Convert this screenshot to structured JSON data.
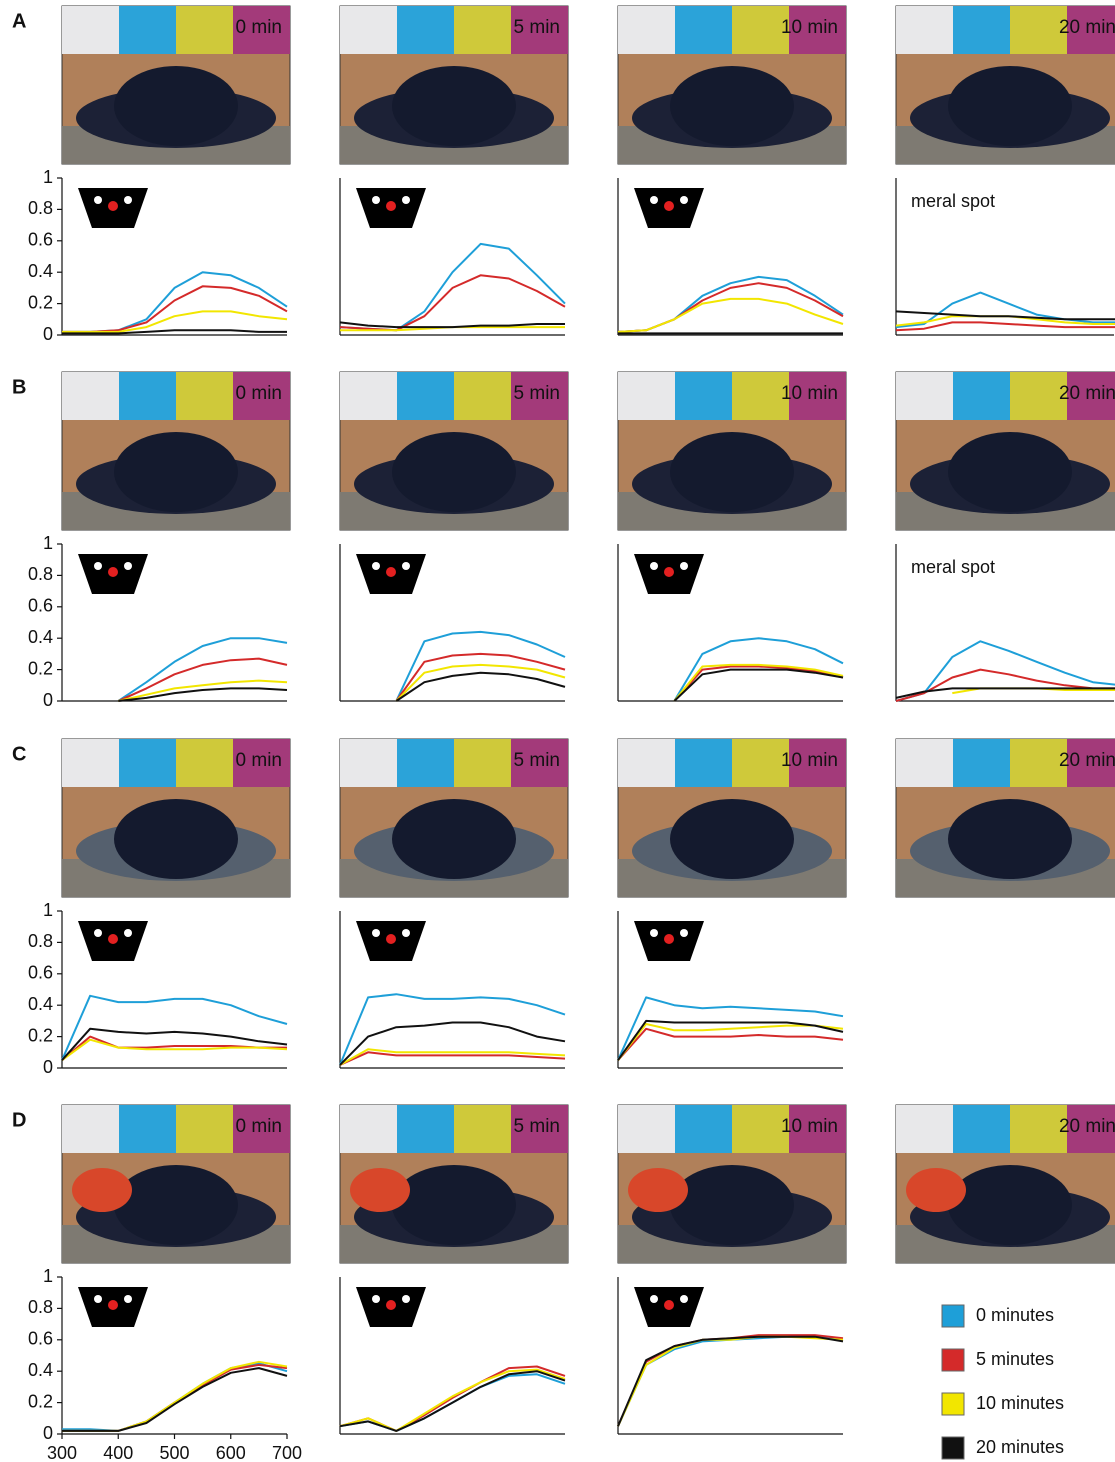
{
  "panel_labels": [
    "A",
    "B",
    "C",
    "D"
  ],
  "photo_labels": [
    "0 min",
    "5 min",
    "10 min",
    "20 min"
  ],
  "legend": [
    {
      "name": "0 minutes",
      "color": "#1e9fd8"
    },
    {
      "name": "5 minutes",
      "color": "#d42a2a"
    },
    {
      "name": "10 minutes",
      "color": "#f2e600"
    },
    {
      "name": "20 minutes",
      "color": "#111111"
    }
  ],
  "chart_data": [
    [
      {
        "type": "line",
        "x": [
          300,
          350,
          400,
          450,
          500,
          550,
          600,
          650,
          700
        ],
        "xlim": [
          300,
          700
        ],
        "ylim": [
          0,
          1
        ],
        "yticks": [
          0,
          0.2,
          0.4,
          0.6,
          0.8,
          1
        ],
        "series": [
          {
            "values": [
              0.02,
              0.02,
              0.03,
              0.1,
              0.3,
              0.4,
              0.38,
              0.3,
              0.18
            ]
          },
          {
            "values": [
              0.02,
              0.02,
              0.03,
              0.08,
              0.22,
              0.31,
              0.3,
              0.25,
              0.15
            ]
          },
          {
            "values": [
              0.02,
              0.02,
              0.02,
              0.05,
              0.12,
              0.15,
              0.15,
              0.12,
              0.1
            ]
          },
          {
            "values": [
              0.01,
              0.01,
              0.01,
              0.02,
              0.03,
              0.03,
              0.03,
              0.02,
              0.02
            ]
          }
        ]
      },
      {
        "type": "line",
        "x": [
          300,
          350,
          400,
          450,
          500,
          550,
          600,
          650,
          700
        ],
        "xlim": [
          300,
          700
        ],
        "ylim": [
          0,
          1
        ],
        "series": [
          {
            "values": [
              0.05,
              0.04,
              0.03,
              0.15,
              0.4,
              0.58,
              0.55,
              0.38,
              0.2
            ]
          },
          {
            "values": [
              0.05,
              0.04,
              0.03,
              0.12,
              0.3,
              0.38,
              0.36,
              0.28,
              0.18
            ]
          },
          {
            "values": [
              0.03,
              0.03,
              0.03,
              0.04,
              0.05,
              0.05,
              0.05,
              0.05,
              0.05
            ]
          },
          {
            "values": [
              0.08,
              0.06,
              0.05,
              0.05,
              0.05,
              0.06,
              0.06,
              0.07,
              0.07
            ]
          }
        ]
      },
      {
        "type": "line",
        "x": [
          300,
          350,
          400,
          450,
          500,
          550,
          600,
          650,
          700
        ],
        "xlim": [
          300,
          700
        ],
        "ylim": [
          0,
          1
        ],
        "series": [
          {
            "values": [
              0.02,
              0.03,
              0.1,
              0.25,
              0.33,
              0.37,
              0.35,
              0.25,
              0.13
            ]
          },
          {
            "values": [
              0.02,
              0.03,
              0.1,
              0.22,
              0.3,
              0.33,
              0.3,
              0.22,
              0.12
            ]
          },
          {
            "values": [
              0.02,
              0.03,
              0.1,
              0.2,
              0.23,
              0.23,
              0.2,
              0.13,
              0.07
            ]
          },
          {
            "values": [
              0.01,
              0.01,
              0.01,
              0.01,
              0.01,
              0.01,
              0.01,
              0.01,
              0.01
            ]
          }
        ]
      },
      {
        "type": "line",
        "annotation": "meral spot",
        "x": [
          300,
          350,
          400,
          450,
          500,
          550,
          600,
          650,
          700
        ],
        "xlim": [
          300,
          700
        ],
        "ylim": [
          0,
          1
        ],
        "series": [
          {
            "values": [
              0.05,
              0.07,
              0.2,
              0.27,
              0.2,
              0.13,
              0.1,
              0.08,
              0.08
            ]
          },
          {
            "values": [
              0.03,
              0.04,
              0.08,
              0.08,
              0.07,
              0.06,
              0.05,
              0.05,
              0.05
            ]
          },
          {
            "values": [
              0.06,
              0.08,
              0.12,
              0.12,
              0.12,
              0.1,
              0.08,
              0.07,
              0.07
            ]
          },
          {
            "values": [
              0.15,
              0.14,
              0.13,
              0.12,
              0.12,
              0.11,
              0.1,
              0.1,
              0.1
            ]
          }
        ]
      }
    ],
    [
      {
        "type": "line",
        "x": [
          300,
          350,
          400,
          450,
          500,
          550,
          600,
          650,
          700
        ],
        "xlim": [
          300,
          700
        ],
        "ylim": [
          0,
          1
        ],
        "yticks": [
          0,
          0.2,
          0.4,
          0.6,
          0.8,
          1
        ],
        "series": [
          {
            "values": [
              null,
              null,
              0,
              0.12,
              0.25,
              0.35,
              0.4,
              0.4,
              0.37
            ]
          },
          {
            "values": [
              null,
              null,
              0,
              0.08,
              0.17,
              0.23,
              0.26,
              0.27,
              0.23
            ]
          },
          {
            "values": [
              null,
              null,
              0,
              0.04,
              0.08,
              0.1,
              0.12,
              0.13,
              0.12
            ]
          },
          {
            "values": [
              null,
              null,
              0,
              0.02,
              0.05,
              0.07,
              0.08,
              0.08,
              0.07
            ]
          }
        ]
      },
      {
        "type": "line",
        "x": [
          300,
          350,
          400,
          450,
          500,
          550,
          600,
          650,
          700
        ],
        "xlim": [
          300,
          700
        ],
        "ylim": [
          0,
          1
        ],
        "series": [
          {
            "values": [
              null,
              null,
              0,
              0.38,
              0.43,
              0.44,
              0.42,
              0.36,
              0.28
            ]
          },
          {
            "values": [
              null,
              null,
              0,
              0.25,
              0.29,
              0.3,
              0.29,
              0.25,
              0.2
            ]
          },
          {
            "values": [
              null,
              null,
              0,
              0.18,
              0.22,
              0.23,
              0.22,
              0.2,
              0.15
            ]
          },
          {
            "values": [
              null,
              null,
              0,
              0.12,
              0.16,
              0.18,
              0.17,
              0.14,
              0.09
            ]
          }
        ]
      },
      {
        "type": "line",
        "x": [
          300,
          350,
          400,
          450,
          500,
          550,
          600,
          650,
          700
        ],
        "xlim": [
          300,
          700
        ],
        "ylim": [
          0,
          1
        ],
        "series": [
          {
            "values": [
              null,
              null,
              0,
              0.3,
              0.38,
              0.4,
              0.38,
              0.33,
              0.24
            ]
          },
          {
            "values": [
              null,
              null,
              0,
              0.2,
              0.22,
              0.22,
              0.21,
              0.19,
              0.15
            ]
          },
          {
            "values": [
              null,
              null,
              0,
              0.22,
              0.23,
              0.23,
              0.22,
              0.2,
              0.16
            ]
          },
          {
            "values": [
              null,
              null,
              0,
              0.17,
              0.2,
              0.2,
              0.2,
              0.18,
              0.15
            ]
          }
        ]
      },
      {
        "type": "line",
        "annotation": "meral spot",
        "x": [
          300,
          350,
          400,
          450,
          500,
          550,
          600,
          650,
          700
        ],
        "xlim": [
          300,
          700
        ],
        "ylim": [
          0,
          1
        ],
        "series": [
          {
            "values": [
              0,
              0.05,
              0.28,
              0.38,
              0.32,
              0.25,
              0.18,
              0.12,
              0.1
            ]
          },
          {
            "values": [
              0,
              0.05,
              0.15,
              0.2,
              0.17,
              0.13,
              0.1,
              0.08,
              0.08
            ]
          },
          {
            "values": [
              null,
              null,
              0.05,
              0.08,
              0.08,
              0.08,
              0.07,
              0.07,
              0.07
            ]
          },
          {
            "values": [
              0.02,
              0.06,
              0.08,
              0.08,
              0.08,
              0.08,
              0.08,
              0.08,
              0.08
            ]
          }
        ]
      }
    ],
    [
      {
        "type": "line",
        "x": [
          300,
          350,
          400,
          450,
          500,
          550,
          600,
          650,
          700
        ],
        "xlim": [
          300,
          700
        ],
        "ylim": [
          0,
          1
        ],
        "yticks": [
          0,
          0.2,
          0.4,
          0.6,
          0.8,
          1
        ],
        "series": [
          {
            "values": [
              0.05,
              0.46,
              0.42,
              0.42,
              0.44,
              0.44,
              0.4,
              0.33,
              0.28
            ]
          },
          {
            "values": [
              0.05,
              0.2,
              0.13,
              0.13,
              0.14,
              0.14,
              0.14,
              0.13,
              0.13
            ]
          },
          {
            "values": [
              0.05,
              0.18,
              0.13,
              0.12,
              0.12,
              0.12,
              0.13,
              0.13,
              0.12
            ]
          },
          {
            "values": [
              0.05,
              0.25,
              0.23,
              0.22,
              0.23,
              0.22,
              0.2,
              0.17,
              0.15
            ]
          }
        ]
      },
      {
        "type": "line",
        "x": [
          300,
          350,
          400,
          450,
          500,
          550,
          600,
          650,
          700
        ],
        "xlim": [
          300,
          700
        ],
        "ylim": [
          0,
          1
        ],
        "series": [
          {
            "values": [
              0.02,
              0.45,
              0.47,
              0.44,
              0.44,
              0.45,
              0.44,
              0.4,
              0.34
            ]
          },
          {
            "values": [
              0.02,
              0.1,
              0.08,
              0.08,
              0.08,
              0.08,
              0.08,
              0.07,
              0.06
            ]
          },
          {
            "values": [
              0.02,
              0.12,
              0.1,
              0.1,
              0.1,
              0.1,
              0.1,
              0.09,
              0.08
            ]
          },
          {
            "values": [
              0.02,
              0.2,
              0.26,
              0.27,
              0.29,
              0.29,
              0.26,
              0.2,
              0.17
            ]
          }
        ]
      },
      {
        "type": "line",
        "x": [
          300,
          350,
          400,
          450,
          500,
          550,
          600,
          650,
          700
        ],
        "xlim": [
          300,
          700
        ],
        "ylim": [
          0,
          1
        ],
        "series": [
          {
            "values": [
              0.05,
              0.45,
              0.4,
              0.38,
              0.39,
              0.38,
              0.37,
              0.36,
              0.33
            ]
          },
          {
            "values": [
              0.05,
              0.25,
              0.2,
              0.2,
              0.2,
              0.21,
              0.2,
              0.2,
              0.18
            ]
          },
          {
            "values": [
              0.05,
              0.28,
              0.24,
              0.24,
              0.25,
              0.26,
              0.27,
              0.27,
              0.25
            ]
          },
          {
            "values": [
              0.05,
              0.3,
              0.29,
              0.29,
              0.29,
              0.29,
              0.29,
              0.27,
              0.23
            ]
          }
        ]
      }
    ],
    [
      {
        "type": "line",
        "x": [
          300,
          350,
          400,
          450,
          500,
          550,
          600,
          650,
          700
        ],
        "xlim": [
          300,
          700
        ],
        "ylim": [
          0,
          1
        ],
        "yticks": [
          0,
          0.2,
          0.4,
          0.6,
          0.8,
          1
        ],
        "xticks": [
          300,
          400,
          500,
          600,
          700
        ],
        "series": [
          {
            "values": [
              0.03,
              0.03,
              0.02,
              0.08,
              0.2,
              0.32,
              0.42,
              0.45,
              0.4
            ]
          },
          {
            "values": [
              0.02,
              0.02,
              0.02,
              0.08,
              0.2,
              0.31,
              0.41,
              0.44,
              0.42
            ]
          },
          {
            "values": [
              0.02,
              0.02,
              0.02,
              0.08,
              0.2,
              0.32,
              0.42,
              0.46,
              0.43
            ]
          },
          {
            "values": [
              0.02,
              0.02,
              0.02,
              0.07,
              0.19,
              0.3,
              0.39,
              0.42,
              0.37
            ]
          }
        ]
      },
      {
        "type": "line",
        "x": [
          300,
          350,
          400,
          450,
          500,
          550,
          600,
          650,
          700
        ],
        "xlim": [
          300,
          700
        ],
        "ylim": [
          0,
          1
        ],
        "series": [
          {
            "values": [
              0.05,
              0.08,
              0.02,
              0.1,
              0.2,
              0.3,
              0.37,
              0.38,
              0.32
            ]
          },
          {
            "values": [
              0.05,
              0.1,
              0.02,
              0.12,
              0.23,
              0.33,
              0.42,
              0.43,
              0.37
            ]
          },
          {
            "values": [
              0.05,
              0.1,
              0.02,
              0.13,
              0.24,
              0.33,
              0.4,
              0.41,
              0.35
            ]
          },
          {
            "values": [
              0.05,
              0.08,
              0.02,
              0.1,
              0.2,
              0.3,
              0.38,
              0.4,
              0.34
            ]
          }
        ]
      },
      {
        "type": "line",
        "x": [
          300,
          350,
          400,
          450,
          500,
          550,
          600,
          650,
          700
        ],
        "xlim": [
          300,
          700
        ],
        "ylim": [
          0,
          1
        ],
        "series": [
          {
            "values": [
              0.05,
              0.44,
              0.54,
              0.59,
              0.6,
              0.61,
              0.62,
              0.62,
              0.6
            ]
          },
          {
            "values": [
              0.05,
              0.46,
              0.56,
              0.6,
              0.61,
              0.63,
              0.63,
              0.63,
              0.61
            ]
          },
          {
            "values": [
              0.05,
              0.44,
              0.55,
              0.6,
              0.6,
              0.62,
              0.62,
              0.61,
              0.6
            ]
          },
          {
            "values": [
              0.05,
              0.47,
              0.56,
              0.6,
              0.61,
              0.62,
              0.62,
              0.62,
              0.59
            ]
          }
        ]
      }
    ]
  ]
}
